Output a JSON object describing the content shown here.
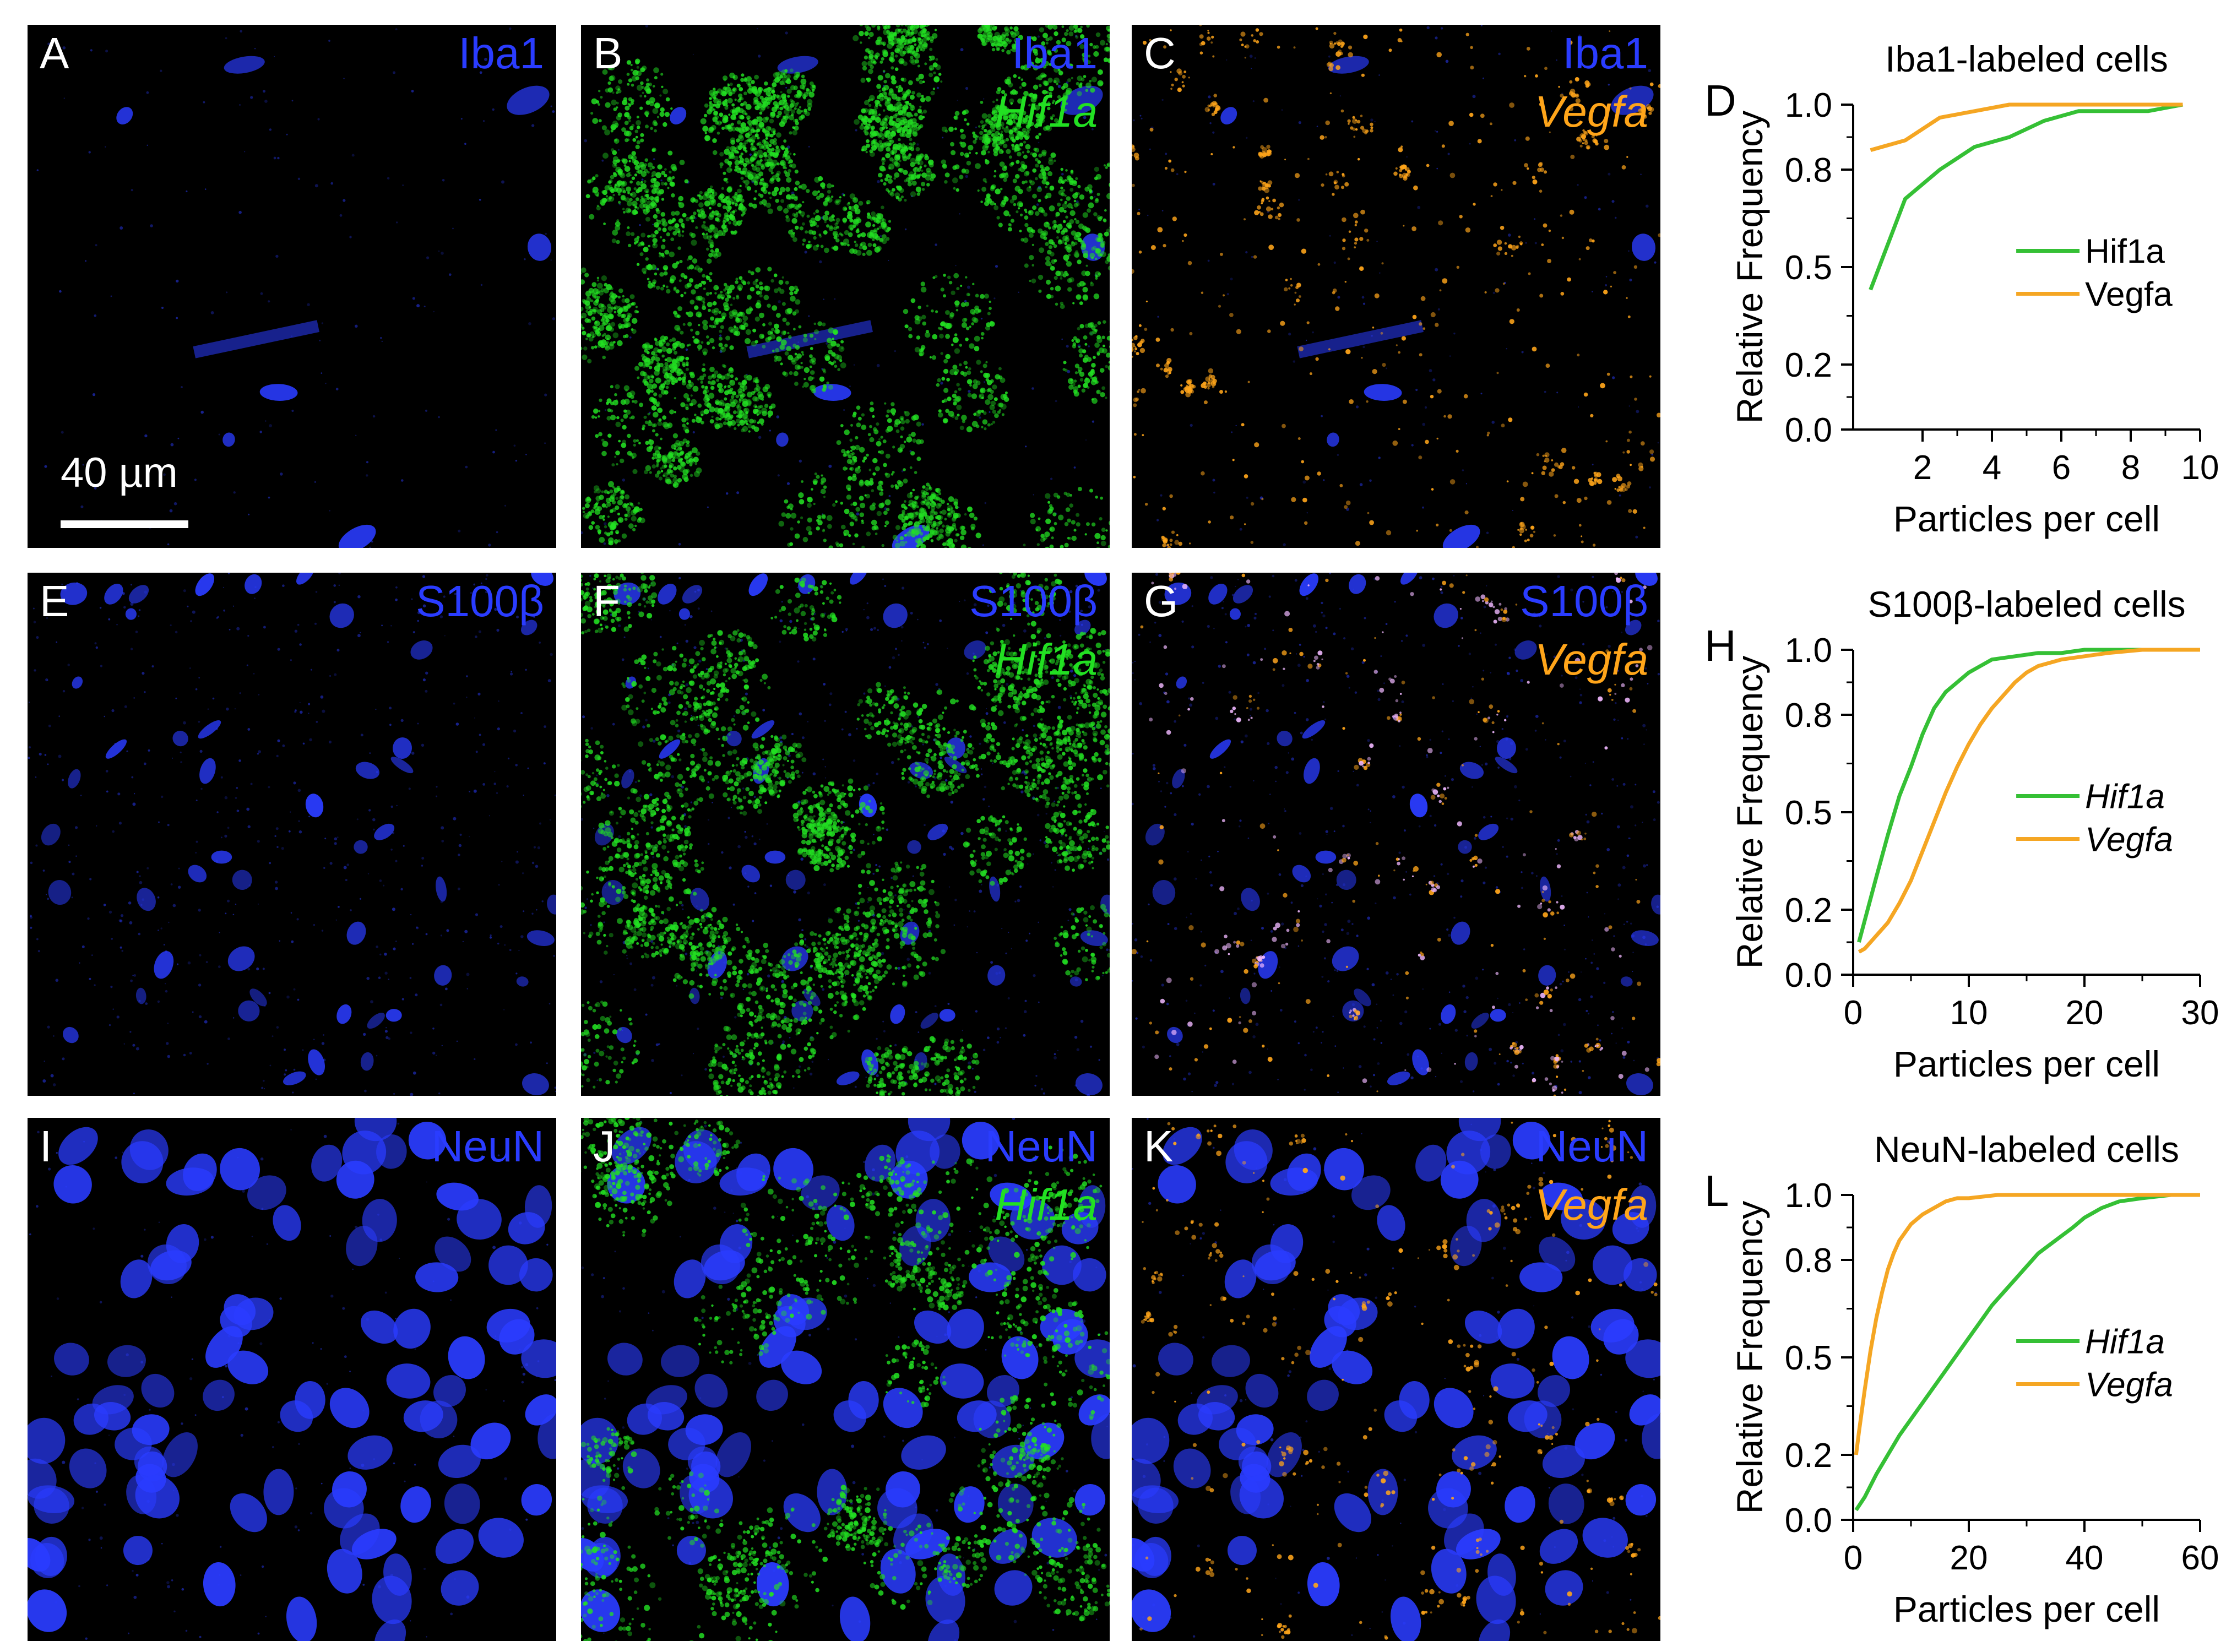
{
  "colors": {
    "blue": "#2a3cff",
    "green": "#22e022",
    "orange": "#ffa51a",
    "hif1a_line": "#35c035",
    "vegfa_line": "#f5a623"
  },
  "scale_bar": {
    "label": "40 µm"
  },
  "rows": [
    {
      "marker": "Iba1",
      "cells": [
        {
          "letter": "A",
          "label1": "Iba1",
          "label2": "",
          "icon": "micrograph-iba1"
        },
        {
          "letter": "B",
          "label1": "Iba1",
          "label2": "Hif1a",
          "icon": "micrograph-iba1-hif1a"
        },
        {
          "letter": "C",
          "label1": "Iba1",
          "label2": "Vegfa",
          "icon": "micrograph-iba1-vegfa"
        }
      ]
    },
    {
      "marker": "S100β",
      "cells": [
        {
          "letter": "E",
          "label1": "S100β",
          "label2": "",
          "icon": "micrograph-s100b"
        },
        {
          "letter": "F",
          "label1": "S100β",
          "label2": "Hif1a",
          "icon": "micrograph-s100b-hif1a"
        },
        {
          "letter": "G",
          "label1": "S100β",
          "label2": "Vegfa",
          "icon": "micrograph-s100b-vegfa"
        }
      ]
    },
    {
      "marker": "NeuN",
      "cells": [
        {
          "letter": "I",
          "label1": "NeuN",
          "label2": "",
          "icon": "micrograph-neun"
        },
        {
          "letter": "J",
          "label1": "NeuN",
          "label2": "Hif1a",
          "icon": "micrograph-neun-hif1a"
        },
        {
          "letter": "K",
          "label1": "NeuN",
          "label2": "Vegfa",
          "icon": "micrograph-neun-vegfa"
        }
      ]
    }
  ],
  "chart_data": [
    {
      "type": "line",
      "letter": "D",
      "title": "Iba1-labeled cells",
      "xlabel": "Particles per cell",
      "ylabel": "Relative Frequency",
      "xlim": [
        0,
        10
      ],
      "ylim": [
        0,
        1
      ],
      "xticks": [
        2,
        4,
        6,
        8,
        10
      ],
      "yticks": [
        0.0,
        0.2,
        0.5,
        0.8,
        1.0
      ],
      "ytick_labels": [
        "0.0",
        "0.2",
        "0.5",
        "0.8",
        "1.0"
      ],
      "xtick_labels": [
        "2",
        "4",
        "6",
        "8",
        "10"
      ],
      "legend_italic": false,
      "legend_position": "middle-right",
      "grid": false,
      "series": [
        {
          "name": "Hif1a",
          "color": "#35c035",
          "x": [
            0.5,
            1.5,
            2.5,
            3.5,
            4.5,
            5.5,
            6.5,
            7.5,
            8.5,
            9.5
          ],
          "y": [
            0.43,
            0.71,
            0.8,
            0.87,
            0.9,
            0.95,
            0.98,
            0.98,
            0.98,
            1.0
          ]
        },
        {
          "name": "Vegfa",
          "color": "#f5a623",
          "x": [
            0.5,
            1.5,
            2.5,
            3.5,
            4.5,
            5.5,
            6.5,
            7.5,
            8.5,
            9.5
          ],
          "y": [
            0.86,
            0.89,
            0.96,
            0.98,
            1.0,
            1.0,
            1.0,
            1.0,
            1.0,
            1.0
          ]
        }
      ]
    },
    {
      "type": "line",
      "letter": "H",
      "title": "S100β-labeled cells",
      "xlabel": "Particles per cell",
      "ylabel": "Relative Frequency",
      "xlim": [
        0,
        30
      ],
      "ylim": [
        0,
        1
      ],
      "xticks": [
        0,
        10,
        20,
        30
      ],
      "yticks": [
        0.0,
        0.2,
        0.5,
        0.8,
        1.0
      ],
      "ytick_labels": [
        "0.0",
        "0.2",
        "0.5",
        "0.8",
        "1.0"
      ],
      "xtick_labels": [
        "0",
        "10",
        "20",
        "30"
      ],
      "legend_italic": true,
      "legend_position": "middle-right",
      "grid": false,
      "series": [
        {
          "name": "Hif1a",
          "color": "#35c035",
          "x": [
            0.5,
            2,
            3,
            4,
            5,
            6,
            7,
            8,
            9,
            10,
            11,
            12,
            14,
            16,
            18,
            20,
            25,
            30
          ],
          "y": [
            0.1,
            0.3,
            0.43,
            0.55,
            0.64,
            0.74,
            0.82,
            0.87,
            0.9,
            0.93,
            0.95,
            0.97,
            0.98,
            0.99,
            0.99,
            1.0,
            1.0,
            1.0
          ]
        },
        {
          "name": "Vegfa",
          "color": "#f5a623",
          "x": [
            0.5,
            1,
            2,
            3,
            4,
            5,
            6,
            7,
            8,
            9,
            10,
            11,
            12,
            13,
            14,
            15,
            16,
            18,
            20,
            22,
            25,
            30
          ],
          "y": [
            0.07,
            0.08,
            0.12,
            0.16,
            0.22,
            0.29,
            0.38,
            0.47,
            0.56,
            0.64,
            0.71,
            0.77,
            0.82,
            0.86,
            0.9,
            0.93,
            0.95,
            0.97,
            0.98,
            0.99,
            1.0,
            1.0
          ]
        }
      ]
    },
    {
      "type": "line",
      "letter": "L",
      "title": "NeuN-labeled cells",
      "xlabel": "Particles per cell",
      "ylabel": "Relative Frequency",
      "xlim": [
        0,
        60
      ],
      "ylim": [
        0,
        1
      ],
      "xticks": [
        0,
        20,
        40,
        60
      ],
      "yticks": [
        0.0,
        0.2,
        0.5,
        0.8,
        1.0
      ],
      "ytick_labels": [
        "0.0",
        "0.2",
        "0.5",
        "0.8",
        "1.0"
      ],
      "xtick_labels": [
        "0",
        "20",
        "40",
        "60"
      ],
      "legend_italic": true,
      "legend_position": "middle-right",
      "grid": false,
      "series": [
        {
          "name": "Hif1a",
          "color": "#35c035",
          "x": [
            0.5,
            2,
            4,
            6,
            8,
            10,
            12,
            14,
            16,
            18,
            20,
            22,
            24,
            26,
            28,
            30,
            32,
            35,
            38,
            40,
            43,
            46,
            50,
            55,
            60
          ],
          "y": [
            0.03,
            0.07,
            0.14,
            0.2,
            0.26,
            0.31,
            0.36,
            0.41,
            0.46,
            0.51,
            0.56,
            0.61,
            0.66,
            0.7,
            0.74,
            0.78,
            0.82,
            0.86,
            0.9,
            0.93,
            0.96,
            0.98,
            0.99,
            1.0,
            1.0
          ]
        },
        {
          "name": "Vegfa",
          "color": "#f5a623",
          "x": [
            0.5,
            1,
            2,
            3,
            4,
            5,
            6,
            7,
            8,
            10,
            12,
            14,
            16,
            18,
            20,
            25,
            30,
            40,
            60
          ],
          "y": [
            0.2,
            0.27,
            0.4,
            0.52,
            0.62,
            0.7,
            0.77,
            0.82,
            0.86,
            0.91,
            0.94,
            0.96,
            0.98,
            0.99,
            0.99,
            1.0,
            1.0,
            1.0,
            1.0
          ]
        }
      ]
    }
  ]
}
